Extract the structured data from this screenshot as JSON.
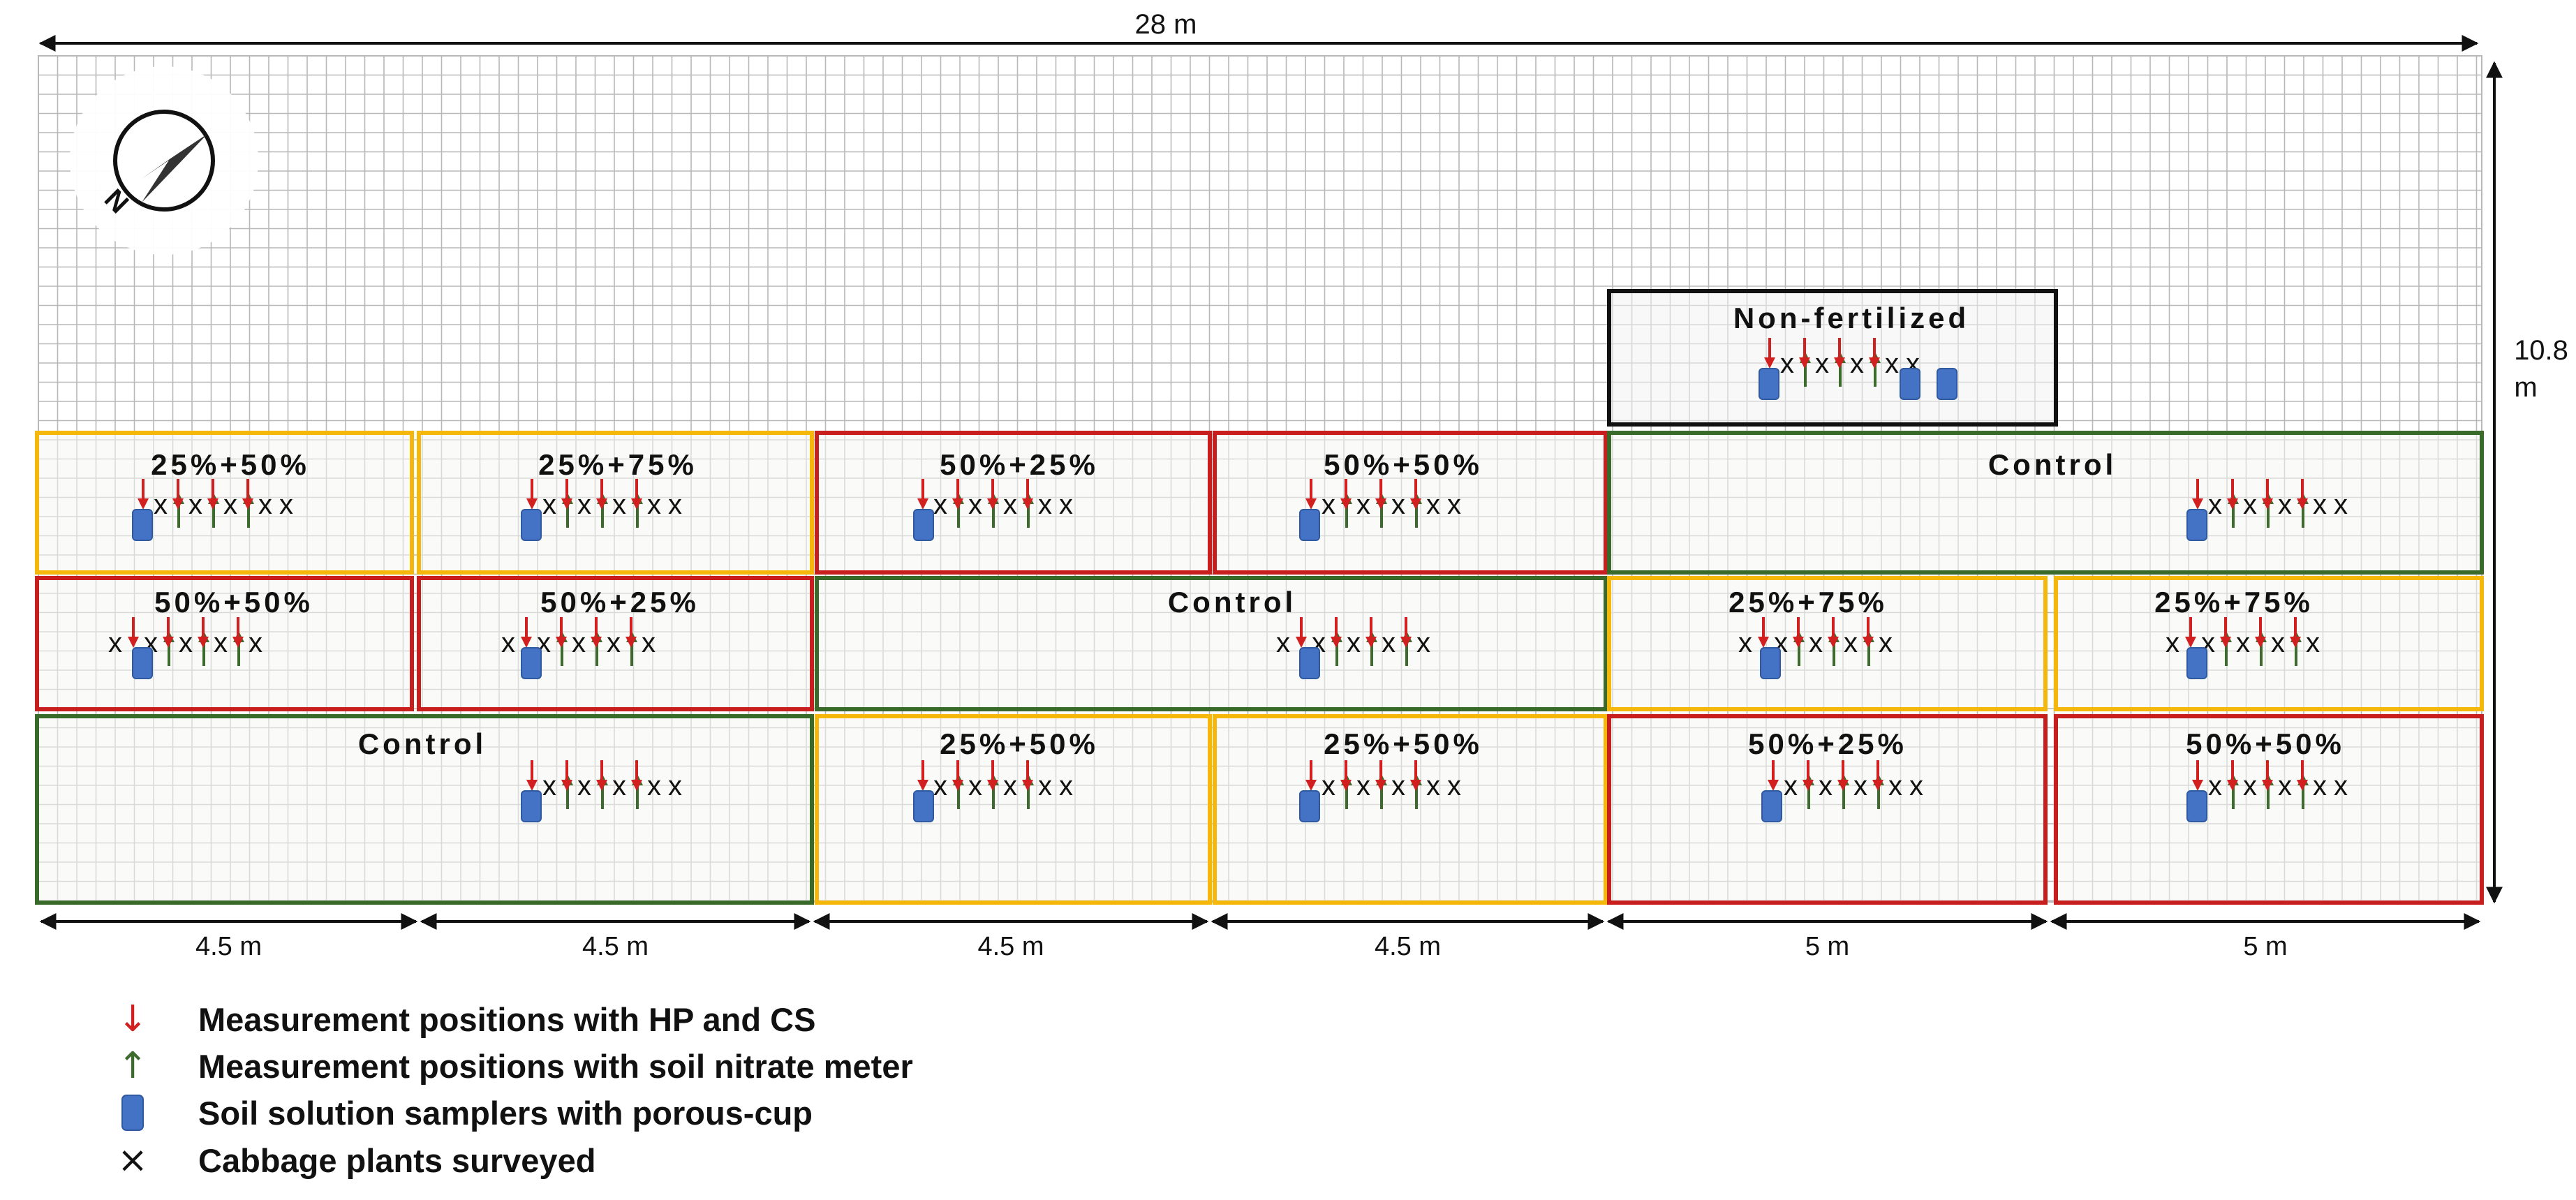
{
  "dimensions": {
    "width_label": "28 m",
    "height_label": "10.8",
    "height_unit": "m"
  },
  "compass": {
    "north_label": "N"
  },
  "plots": [
    {
      "id": "nf",
      "label": "Non-fertilized",
      "color": "#111111",
      "fill": "#f2f2f2",
      "kind": "non-fertilized"
    },
    {
      "id": "r1c1",
      "label": "25%+50%",
      "color": "#f5b70a",
      "kind": "25pct"
    },
    {
      "id": "r1c2",
      "label": "25%+75%",
      "color": "#f5b70a",
      "kind": "25pct"
    },
    {
      "id": "r1c3",
      "label": "50%+25%",
      "color": "#c81e1e",
      "kind": "50pct"
    },
    {
      "id": "r1c4",
      "label": "50%+50%",
      "color": "#c81e1e",
      "kind": "50pct"
    },
    {
      "id": "r1c5",
      "label": "Control",
      "color": "#3a6a2a",
      "kind": "control"
    },
    {
      "id": "r2c1",
      "label": "50%+50%",
      "color": "#c81e1e",
      "kind": "50pct"
    },
    {
      "id": "r2c2",
      "label": "50%+25%",
      "color": "#c81e1e",
      "kind": "50pct"
    },
    {
      "id": "r2c3",
      "label": "Control",
      "color": "#3a6a2a",
      "kind": "control"
    },
    {
      "id": "r2c4",
      "label": "25%+75%",
      "color": "#f5b70a",
      "kind": "25pct"
    },
    {
      "id": "r2c5",
      "label": "25%+75%",
      "color": "#f5b70a",
      "kind": "25pct"
    },
    {
      "id": "r3c1",
      "label": "Control",
      "color": "#3a6a2a",
      "kind": "control"
    },
    {
      "id": "r3c2",
      "label": "25%+50%",
      "color": "#f5b70a",
      "kind": "25pct"
    },
    {
      "id": "r3c3",
      "label": "25%+50%",
      "color": "#f5b70a",
      "kind": "25pct"
    },
    {
      "id": "r3c4",
      "label": "50%+25%",
      "color": "#c81e1e",
      "kind": "50pct"
    },
    {
      "id": "r3c5",
      "label": "50%+50%",
      "color": "#c81e1e",
      "kind": "50pct"
    }
  ],
  "width_labels": [
    "4.5 m",
    "4.5 m",
    "4.5 m",
    "4.5 m",
    "5 m",
    "5 m"
  ],
  "legend": [
    {
      "symbol": "↓",
      "color": "#d22020",
      "label": "Measurement positions with HP and CS"
    },
    {
      "symbol": "↑",
      "color": "#3d6b2d",
      "label": "Measurement positions with soil nitrate meter"
    },
    {
      "symbol": "sampler",
      "color": "#4472c4",
      "label": "Soil solution samplers with porous-cup"
    },
    {
      "symbol": "×",
      "color": "#111111",
      "label": "Cabbage plants surveyed"
    }
  ],
  "colors": {
    "grid": "#b8b8b8",
    "plot_fill": "#f6f8f4",
    "red_arrow": "#d22020",
    "green_arrow": "#3d6b2d",
    "sampler": "#4472c4"
  }
}
